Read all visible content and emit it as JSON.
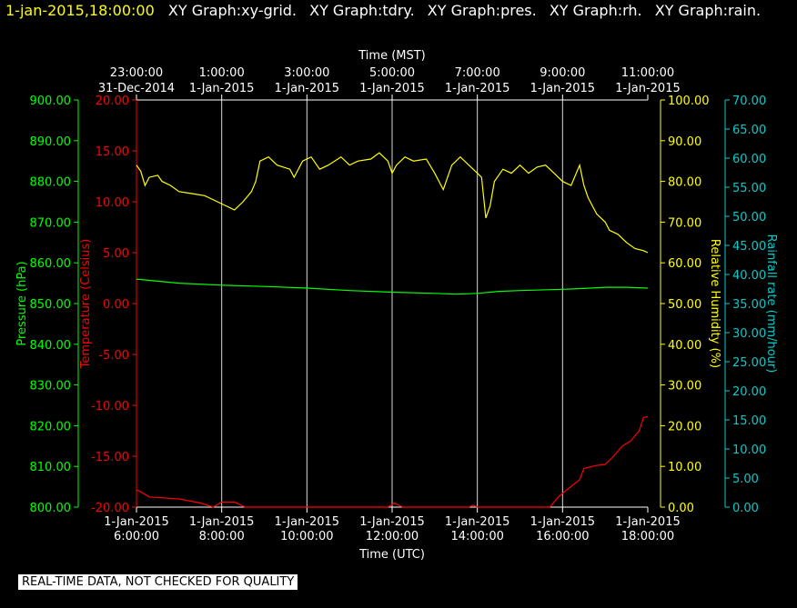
{
  "header": {
    "timestamp": "1-jan-2015,18:00:00",
    "graph_titles": [
      "XY Graph:xy-grid.",
      "XY Graph:tdry.",
      "XY Graph:pres.",
      "XY Graph:rh.",
      "XY Graph:rain."
    ]
  },
  "footer": {
    "notice": "REAL-TIME DATA, NOT CHECKED FOR QUALITY"
  },
  "colors": {
    "background": "#000000",
    "pressure": "#00ff00",
    "temperature": "#ff0000",
    "humidity": "#ffff00",
    "rain": "#00cccc",
    "text": "#ffffff",
    "grid": "#ffffff"
  },
  "chart_data": {
    "type": "line",
    "grid": true,
    "top_axis": {
      "label": "Time (MST)",
      "ticks": [
        {
          "time": "23:00:00",
          "date": "31-Dec-2014"
        },
        {
          "time": "1:00:00",
          "date": "1-Jan-2015"
        },
        {
          "time": "3:00:00",
          "date": "1-Jan-2015"
        },
        {
          "time": "5:00:00",
          "date": "1-Jan-2015"
        },
        {
          "time": "7:00:00",
          "date": "1-Jan-2015"
        },
        {
          "time": "9:00:00",
          "date": "1-Jan-2015"
        },
        {
          "time": "11:00:00",
          "date": "1-Jan-2015"
        }
      ]
    },
    "bottom_axis": {
      "label": "Time (UTC)",
      "range_hours": [
        6,
        18
      ],
      "ticks": [
        {
          "date": "1-Jan-2015",
          "time": "6:00:00"
        },
        {
          "date": "1-Jan-2015",
          "time": "8:00:00"
        },
        {
          "date": "1-Jan-2015",
          "time": "10:00:00"
        },
        {
          "date": "1-Jan-2015",
          "time": "12:00:00"
        },
        {
          "date": "1-Jan-2015",
          "time": "14:00:00"
        },
        {
          "date": "1-Jan-2015",
          "time": "16:00:00"
        },
        {
          "date": "1-Jan-2015",
          "time": "18:00:00"
        }
      ]
    },
    "pressure_axis": {
      "label": "Pressure (hPa)",
      "ylim": [
        800,
        900
      ],
      "ticks": [
        "900.00",
        "890.00",
        "880.00",
        "870.00",
        "860.00",
        "850.00",
        "840.00",
        "830.00",
        "820.00",
        "810.00",
        "800.00"
      ]
    },
    "temperature_axis": {
      "label": "Temperature (Celsius)",
      "ylim": [
        -20,
        20
      ],
      "ticks": [
        "20.00",
        "15.00",
        "10.00",
        "5.00",
        "0.00",
        "-5.00",
        "-10.00",
        "-15.00",
        "-20.00"
      ]
    },
    "humidity_axis": {
      "label": "Relative Humidity (%)",
      "ylim": [
        0,
        100
      ],
      "ticks": [
        "100.00",
        "90.00",
        "80.00",
        "70.00",
        "60.00",
        "50.00",
        "40.00",
        "30.00",
        "20.00",
        "10.00",
        "0.00"
      ]
    },
    "rain_axis": {
      "label": "Rainfall rate (mm/hour)",
      "ylim": [
        0,
        70
      ],
      "ticks": [
        "70.00",
        "65.00",
        "60.00",
        "55.00",
        "50.00",
        "45.00",
        "40.00",
        "35.00",
        "30.00",
        "25.00",
        "20.00",
        "15.00",
        "10.00",
        "5.00",
        "0.00"
      ]
    },
    "series": [
      {
        "name": "tdry",
        "axis": "temperature",
        "points": [
          [
            6.0,
            -18.3
          ],
          [
            6.1,
            -18.5
          ],
          [
            6.3,
            -19.0
          ],
          [
            7.0,
            -19.2
          ],
          [
            7.5,
            -19.6
          ],
          [
            7.8,
            -20.0
          ],
          [
            8.0,
            -19.5
          ],
          [
            8.3,
            -19.5
          ],
          [
            8.55,
            -20.0
          ],
          [
            11.9,
            -20.0
          ],
          [
            12.05,
            -19.6
          ],
          [
            12.25,
            -20.0
          ],
          [
            13.8,
            -20.0
          ],
          [
            13.9,
            -19.8
          ],
          [
            14.0,
            -20.0
          ],
          [
            15.7,
            -20.0
          ],
          [
            15.9,
            -19.0
          ],
          [
            16.1,
            -18.3
          ],
          [
            16.4,
            -17.3
          ],
          [
            16.5,
            -16.2
          ],
          [
            16.8,
            -15.9
          ],
          [
            17.0,
            -15.8
          ],
          [
            17.2,
            -15.0
          ],
          [
            17.4,
            -14.0
          ],
          [
            17.6,
            -13.5
          ],
          [
            17.8,
            -12.5
          ],
          [
            17.9,
            -11.2
          ],
          [
            18.0,
            -11.1
          ]
        ]
      },
      {
        "name": "pres",
        "axis": "pressure",
        "points": [
          [
            6.0,
            856.0
          ],
          [
            6.5,
            855.5
          ],
          [
            7.0,
            855.0
          ],
          [
            8.0,
            854.5
          ],
          [
            9.0,
            854.2
          ],
          [
            10.0,
            853.8
          ],
          [
            11.0,
            853.2
          ],
          [
            12.0,
            852.8
          ],
          [
            13.0,
            852.5
          ],
          [
            13.5,
            852.3
          ],
          [
            14.0,
            852.5
          ],
          [
            14.5,
            853.0
          ],
          [
            15.0,
            853.2
          ],
          [
            16.0,
            853.5
          ],
          [
            16.5,
            853.7
          ],
          [
            17.0,
            854.0
          ],
          [
            17.5,
            854.0
          ],
          [
            18.0,
            853.8
          ]
        ]
      },
      {
        "name": "rh",
        "axis": "humidity",
        "points": [
          [
            6.0,
            84.0
          ],
          [
            6.1,
            82.5
          ],
          [
            6.2,
            79.0
          ],
          [
            6.3,
            81.0
          ],
          [
            6.5,
            81.5
          ],
          [
            6.6,
            80.0
          ],
          [
            6.8,
            79.0
          ],
          [
            7.0,
            77.5
          ],
          [
            7.3,
            77.0
          ],
          [
            7.6,
            76.5
          ],
          [
            7.9,
            75.0
          ],
          [
            8.1,
            74.0
          ],
          [
            8.3,
            73.0
          ],
          [
            8.5,
            75.0
          ],
          [
            8.7,
            77.5
          ],
          [
            8.8,
            80.0
          ],
          [
            8.9,
            85.0
          ],
          [
            9.1,
            86.0
          ],
          [
            9.3,
            84.0
          ],
          [
            9.6,
            83.0
          ],
          [
            9.7,
            81.0
          ],
          [
            9.9,
            85.0
          ],
          [
            10.1,
            86.0
          ],
          [
            10.3,
            83.0
          ],
          [
            10.5,
            84.0
          ],
          [
            10.8,
            86.0
          ],
          [
            11.0,
            84.0
          ],
          [
            11.2,
            85.0
          ],
          [
            11.5,
            85.5
          ],
          [
            11.7,
            87.0
          ],
          [
            11.9,
            85.0
          ],
          [
            12.0,
            82.0
          ],
          [
            12.1,
            84.0
          ],
          [
            12.3,
            86.0
          ],
          [
            12.5,
            85.0
          ],
          [
            12.8,
            85.5
          ],
          [
            13.0,
            82.0
          ],
          [
            13.2,
            78.0
          ],
          [
            13.4,
            84.0
          ],
          [
            13.6,
            86.0
          ],
          [
            13.8,
            84.0
          ],
          [
            14.0,
            82.0
          ],
          [
            14.1,
            81.0
          ],
          [
            14.2,
            71.0
          ],
          [
            14.3,
            74.0
          ],
          [
            14.4,
            80.0
          ],
          [
            14.6,
            83.0
          ],
          [
            14.8,
            82.0
          ],
          [
            15.0,
            84.0
          ],
          [
            15.2,
            82.0
          ],
          [
            15.4,
            83.5
          ],
          [
            15.6,
            84.0
          ],
          [
            15.8,
            82.0
          ],
          [
            16.0,
            80.0
          ],
          [
            16.2,
            79.0
          ],
          [
            16.4,
            84.0
          ],
          [
            16.5,
            79.0
          ],
          [
            16.6,
            76.0
          ],
          [
            16.8,
            72.0
          ],
          [
            17.0,
            70.0
          ],
          [
            17.1,
            68.0
          ],
          [
            17.3,
            67.0
          ],
          [
            17.5,
            65.0
          ],
          [
            17.7,
            63.5
          ],
          [
            17.9,
            63.0
          ],
          [
            18.0,
            62.5
          ]
        ]
      }
    ]
  }
}
